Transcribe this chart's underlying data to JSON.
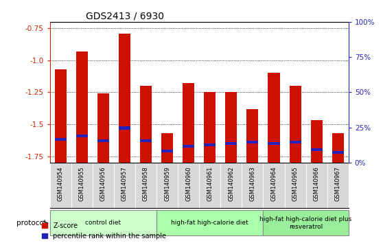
{
  "title": "GDS2413 / 6930",
  "samples": [
    "GSM140954",
    "GSM140955",
    "GSM140956",
    "GSM140957",
    "GSM140958",
    "GSM140959",
    "GSM140960",
    "GSM140961",
    "GSM140962",
    "GSM140963",
    "GSM140964",
    "GSM140965",
    "GSM140966",
    "GSM140967"
  ],
  "zscore": [
    -1.07,
    -0.93,
    -1.26,
    -0.79,
    -1.2,
    -1.57,
    -1.18,
    -1.25,
    -1.25,
    -1.38,
    -1.1,
    -1.2,
    -1.47,
    -1.57
  ],
  "pct_rank": [
    -1.63,
    -1.6,
    -1.64,
    -1.54,
    -1.64,
    -1.72,
    -1.68,
    -1.67,
    -1.66,
    -1.65,
    -1.66,
    -1.65,
    -1.71,
    -1.73
  ],
  "ymin": -1.8,
  "ymax": -0.7,
  "yticks": [
    -1.75,
    -1.5,
    -1.25,
    -1.0,
    -0.75
  ],
  "right_ytick_pct": [
    0,
    25,
    50,
    75,
    100
  ],
  "groups": [
    {
      "label": "control diet",
      "start": 0,
      "end": 4,
      "color": "#ccffcc"
    },
    {
      "label": "high-fat high-calorie diet",
      "start": 5,
      "end": 9,
      "color": "#aaffaa"
    },
    {
      "label": "high-fat high-calorie diet plus\nresveratrol",
      "start": 10,
      "end": 13,
      "color": "#99ee99"
    }
  ],
  "bar_color": "#cc1100",
  "pct_color": "#2222bb",
  "bar_width": 0.55,
  "protocol_label": "protocol",
  "legend_zscore": "Z-score",
  "legend_pct": "percentile rank within the sample",
  "title_fontsize": 10,
  "axis_color_left": "#cc2200",
  "axis_color_right": "#2222bb",
  "xtick_bg": "#d8d8d8"
}
